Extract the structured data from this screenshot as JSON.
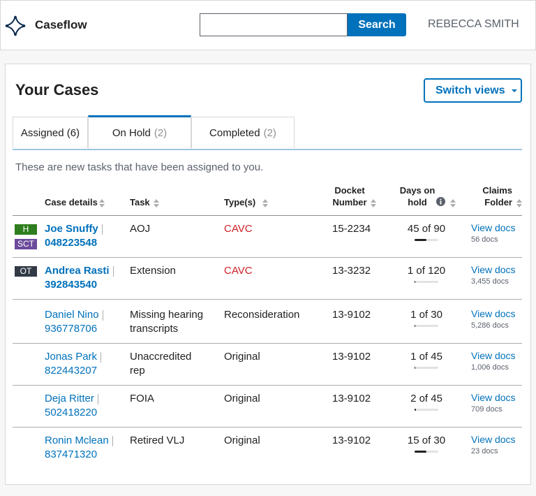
{
  "header": {
    "brand": "Caseflow",
    "search_button": "Search",
    "user": "REBECCA SMITH"
  },
  "title": "Your Cases",
  "switch_views": "Switch views",
  "tabs": [
    {
      "label": "Assigned (6)"
    },
    {
      "label": "On Hold",
      "count": "(2)"
    },
    {
      "label": "Completed",
      "count": "(2)"
    }
  ],
  "description": "These are new tasks that have been assigned to you.",
  "table": {
    "columns": [
      "Case details",
      "Task",
      "Type(s)",
      "Docket Number",
      "Days on hold",
      "Claims Folder"
    ],
    "rows": [
      {
        "badges": [
          {
            "label": "H",
            "color": "#2e7d1e"
          },
          {
            "label": "SCT",
            "color": "#6b4a9b"
          }
        ],
        "name": "Joe Snuffy",
        "id": "048223548",
        "bold": true,
        "task": "AOJ",
        "type": "CAVC",
        "type_color": "#cd2026",
        "docket": "15-2234",
        "days": {
          "held": 45,
          "total": 90,
          "label": "45 of 90"
        },
        "link": "View docs",
        "docs": "56 docs"
      },
      {
        "badges": [
          {
            "label": "OT",
            "color": "#323a45"
          }
        ],
        "name": "Andrea Rasti",
        "id": "392843540",
        "bold": true,
        "task": "Extension",
        "type": "CAVC",
        "type_color": "#cd2026",
        "docket": "13-3232",
        "days": {
          "held": 1,
          "total": 120,
          "label": "1 of 120"
        },
        "link": "View docs",
        "docs": "3,455 docs"
      },
      {
        "badges": [],
        "name": "Daniel Nino",
        "id": "936778706",
        "bold": false,
        "task": "Missing hearing transcripts",
        "type": "Reconsideration",
        "type_color": "#212121",
        "docket": "13-9102",
        "days": {
          "held": 1,
          "total": 30,
          "label": "1 of 30"
        },
        "link": "View docs",
        "docs": "5,286 docs"
      },
      {
        "badges": [],
        "name": "Jonas Park",
        "id": "822443207",
        "bold": false,
        "task": "Unaccredited rep",
        "type": "Original",
        "type_color": "#212121",
        "docket": "13-9102",
        "days": {
          "held": 1,
          "total": 45,
          "label": "1 of 45"
        },
        "link": "View docs",
        "docs": "1,006 docs"
      },
      {
        "badges": [],
        "name": "Deja Ritter",
        "id": "502418220",
        "bold": false,
        "task": "FOIA",
        "type": "Original",
        "type_color": "#212121",
        "docket": "13-9102",
        "days": {
          "held": 2,
          "total": 45,
          "label": "2 of 45"
        },
        "link": "View docs",
        "docs": "709 docs"
      },
      {
        "badges": [],
        "name": "Ronin Mclean",
        "id": "837471320",
        "bold": false,
        "task": "Retired VLJ",
        "type": "Original",
        "type_color": "#212121",
        "docket": "13-9102",
        "days": {
          "held": 15,
          "total": 30,
          "label": "15 of 30"
        },
        "link": "View docs",
        "docs": "23 docs"
      }
    ]
  }
}
